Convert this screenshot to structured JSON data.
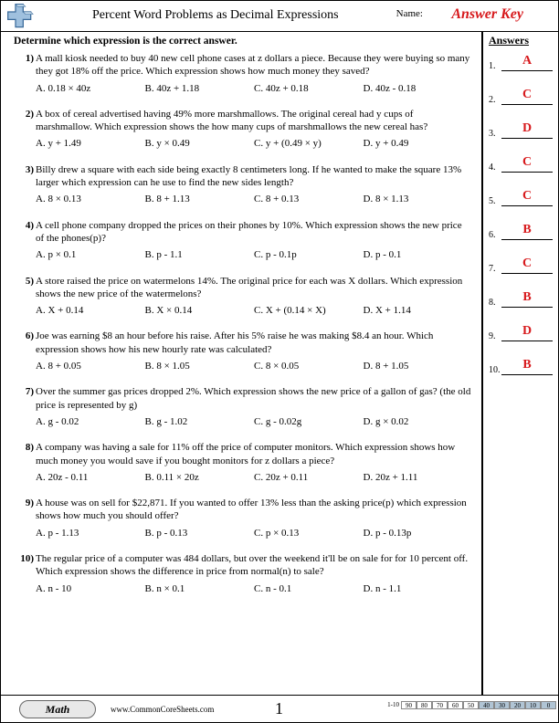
{
  "header": {
    "title": "Percent Word Problems as Decimal Expressions",
    "name_label": "Name:",
    "answer_key": "Answer Key"
  },
  "instructions": "Determine which expression is the correct answer.",
  "problems": [
    {
      "num": "1)",
      "text": "A mall kiosk needed to buy 40 new cell phone cases at z dollars a piece. Because they were buying so many they got 18% off the price. Which expression shows how much money they saved?",
      "choices": [
        "A. 0.18 × 40z",
        "B. 40z + 1.18",
        "C. 40z + 0.18",
        "D. 40z - 0.18"
      ]
    },
    {
      "num": "2)",
      "text": "A box of cereal advertised having 49% more marshmallows. The original cereal had y cups of marshmallow. Which expression shows the how many cups of marshmallows the new cereal has?",
      "choices": [
        "A. y + 1.49",
        "B. y × 0.49",
        "C. y + (0.49 × y)",
        "D. y + 0.49"
      ]
    },
    {
      "num": "3)",
      "text": "Billy drew a square with each side being exactly 8 centimeters long. If he wanted to make the square 13% larger which expression can he use to find the new sides length?",
      "choices": [
        "A. 8 × 0.13",
        "B. 8 + 1.13",
        "C. 8 + 0.13",
        "D. 8 × 1.13"
      ]
    },
    {
      "num": "4)",
      "text": "A cell phone company dropped the prices on their phones by 10%. Which expression shows the new price of the phones(p)?",
      "choices": [
        "A. p × 0.1",
        "B. p - 1.1",
        "C. p - 0.1p",
        "D. p - 0.1"
      ]
    },
    {
      "num": "5)",
      "text": "A store raised the price on watermelons 14%. The original price for each was X dollars. Which expression shows the new price of the watermelons?",
      "choices": [
        "A. X + 0.14",
        "B. X × 0.14",
        "C. X + (0.14 × X)",
        "D. X + 1.14"
      ]
    },
    {
      "num": "6)",
      "text": "Joe was earning $8 an hour before his raise. After his 5% raise he was making $8.4 an hour. Which expression shows how his new hourly rate was calculated?",
      "choices": [
        "A. 8 + 0.05",
        "B. 8 × 1.05",
        "C. 8 × 0.05",
        "D. 8 + 1.05"
      ]
    },
    {
      "num": "7)",
      "text": "Over the summer gas prices dropped 2%. Which expression shows the new price of a gallon of gas? (the old price is represented by g)",
      "choices": [
        "A. g - 0.02",
        "B. g - 1.02",
        "C. g - 0.02g",
        "D. g × 0.02"
      ]
    },
    {
      "num": "8)",
      "text": "A company was having a sale for 11% off the price of computer monitors. Which expression shows how much money you would save if you bought monitors for z dollars a piece?",
      "choices": [
        "A. 20z - 0.11",
        "B. 0.11 × 20z",
        "C. 20z + 0.11",
        "D. 20z + 1.11"
      ]
    },
    {
      "num": "9)",
      "text": "A house was on sell for $22,871. If you wanted to offer 13% less than the asking price(p) which expression shows how much you should offer?",
      "choices": [
        "A. p - 1.13",
        "B. p - 0.13",
        "C. p × 0.13",
        "D. p - 0.13p"
      ]
    },
    {
      "num": "10)",
      "text": "The regular price of a computer was 484 dollars, but over the weekend it'll be on sale for for 10 percent off. Which expression shows the difference in price from normal(n) to sale?",
      "choices": [
        "A. n - 10",
        "B. n × 0.1",
        "C. n - 0.1",
        "D. n - 1.1"
      ]
    }
  ],
  "answers": {
    "heading": "Answers",
    "rows": [
      {
        "num": "1.",
        "val": "A"
      },
      {
        "num": "2.",
        "val": "C"
      },
      {
        "num": "3.",
        "val": "D"
      },
      {
        "num": "4.",
        "val": "C"
      },
      {
        "num": "5.",
        "val": "C"
      },
      {
        "num": "6.",
        "val": "B"
      },
      {
        "num": "7.",
        "val": "C"
      },
      {
        "num": "8.",
        "val": "B"
      },
      {
        "num": "9.",
        "val": "D"
      },
      {
        "num": "10.",
        "val": "B"
      }
    ]
  },
  "footer": {
    "badge": "Math",
    "url": "www.CommonCoreSheets.com",
    "page": "1",
    "score_label": "1-10",
    "scores": [
      "90",
      "80",
      "70",
      "60",
      "50",
      "40",
      "30",
      "20",
      "10",
      "0"
    ],
    "shaded_from": 5
  },
  "colors": {
    "accent_red": "#d7191c",
    "logo_blue": "#7aa8d4",
    "shaded_cell": "#b0c4d4"
  }
}
